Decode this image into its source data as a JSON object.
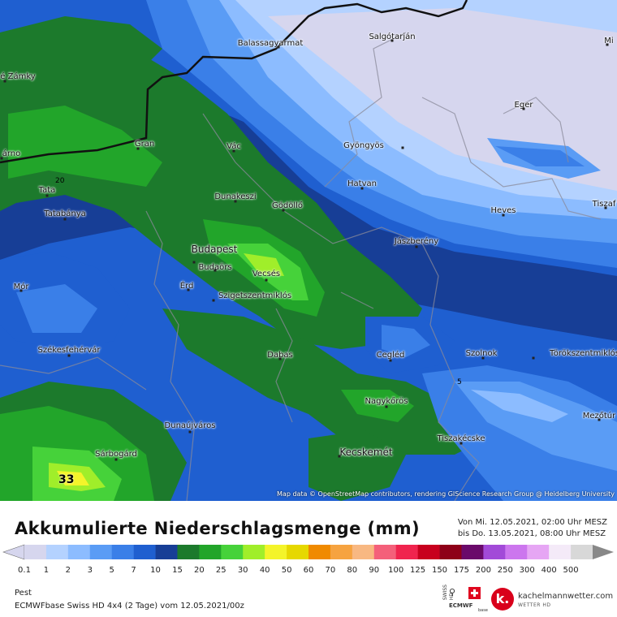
{
  "map": {
    "attribution": "Map data © OpenStreetMap contributors, rendering GIScience Research Group @ Heidelberg University",
    "max_value_label": "33",
    "contour_label_20": "20",
    "contour_label_5": "5",
    "cities": [
      {
        "name": "Balassagyarmat",
        "size": "normal"
      },
      {
        "name": "Salgótarján",
        "size": "normal"
      },
      {
        "name": "Mi",
        "size": "normal"
      },
      {
        "name": "é Zámky",
        "size": "normal"
      },
      {
        "name": "Eger",
        "size": "normal"
      },
      {
        "name": "Gran",
        "size": "normal"
      },
      {
        "name": "Vác",
        "size": "normal"
      },
      {
        "name": "árno",
        "size": "normal"
      },
      {
        "name": "Gyöngyös",
        "size": "normal"
      },
      {
        "name": "Tata",
        "size": "normal"
      },
      {
        "name": "Dunakeszi",
        "size": "normal"
      },
      {
        "name": "Hatvan",
        "size": "normal"
      },
      {
        "name": "Gödöllő",
        "size": "normal"
      },
      {
        "name": "Tiszaf",
        "size": "normal"
      },
      {
        "name": "Tatabánya",
        "size": "normal"
      },
      {
        "name": "Heves",
        "size": "normal"
      },
      {
        "name": "Jászberény",
        "size": "normal"
      },
      {
        "name": "Budapest",
        "size": "big"
      },
      {
        "name": "Budaörs",
        "size": "normal"
      },
      {
        "name": "Vecsés",
        "size": "normal"
      },
      {
        "name": "Mór",
        "size": "normal"
      },
      {
        "name": "Érd",
        "size": "normal"
      },
      {
        "name": "Szigetszentmiklós",
        "size": "normal"
      },
      {
        "name": "Székesfehérvár",
        "size": "normal"
      },
      {
        "name": "Dabas",
        "size": "normal"
      },
      {
        "name": "Cegléd",
        "size": "normal"
      },
      {
        "name": "Szolnok",
        "size": "normal"
      },
      {
        "name": "Törökszentmiklós",
        "size": "normal"
      },
      {
        "name": "Nagykőrös",
        "size": "normal"
      },
      {
        "name": "Mezőtúr",
        "size": "normal"
      },
      {
        "name": "Dunaújváros",
        "size": "normal"
      },
      {
        "name": "Tiszakécske",
        "size": "normal"
      },
      {
        "name": "Sárbogárd",
        "size": "normal"
      },
      {
        "name": "Kecskemét",
        "size": "big"
      }
    ]
  },
  "legend": {
    "title": "Akkumulierte Niederschlagsmenge (mm)",
    "period_from": "Von Mi. 12.05.2021, 02:00 Uhr MESZ",
    "period_to": "bis Do. 13.05.2021, 08:00 Uhr MESZ",
    "region": "Pest",
    "model": "ECMWFbase Swiss HD 4x4 (2 Tage) vom 12.05.2021/00z",
    "ticks": [
      "0.1",
      "1",
      "2",
      "3",
      "5",
      "7",
      "10",
      "15",
      "20",
      "25",
      "30",
      "40",
      "50",
      "60",
      "70",
      "80",
      "90",
      "100",
      "125",
      "150",
      "175",
      "200",
      "250",
      "300",
      "400",
      "500"
    ],
    "colors": [
      "#d6d6ee",
      "#b4d2ff",
      "#8cbcff",
      "#5a9cf5",
      "#3a7fe8",
      "#1f5fd0",
      "#173e96",
      "#1c7a2c",
      "#22a52a",
      "#46d23a",
      "#a0ee2a",
      "#f4f42a",
      "#e6d800",
      "#f08a00",
      "#f6a340",
      "#f8b882",
      "#f4607a",
      "#f0244e",
      "#c8001e",
      "#8e0018",
      "#6a0a6a",
      "#a24ad8",
      "#cc76ee",
      "#e6a6f4",
      "#f4eaf8",
      "#d8d8d8"
    ],
    "logos": {
      "ecmwf_text": "SWISS HD ECMWF base",
      "kach_letter": "k.",
      "kach_name": "kachelmannwetter.com",
      "kach_sub": "WETTER HD"
    }
  }
}
